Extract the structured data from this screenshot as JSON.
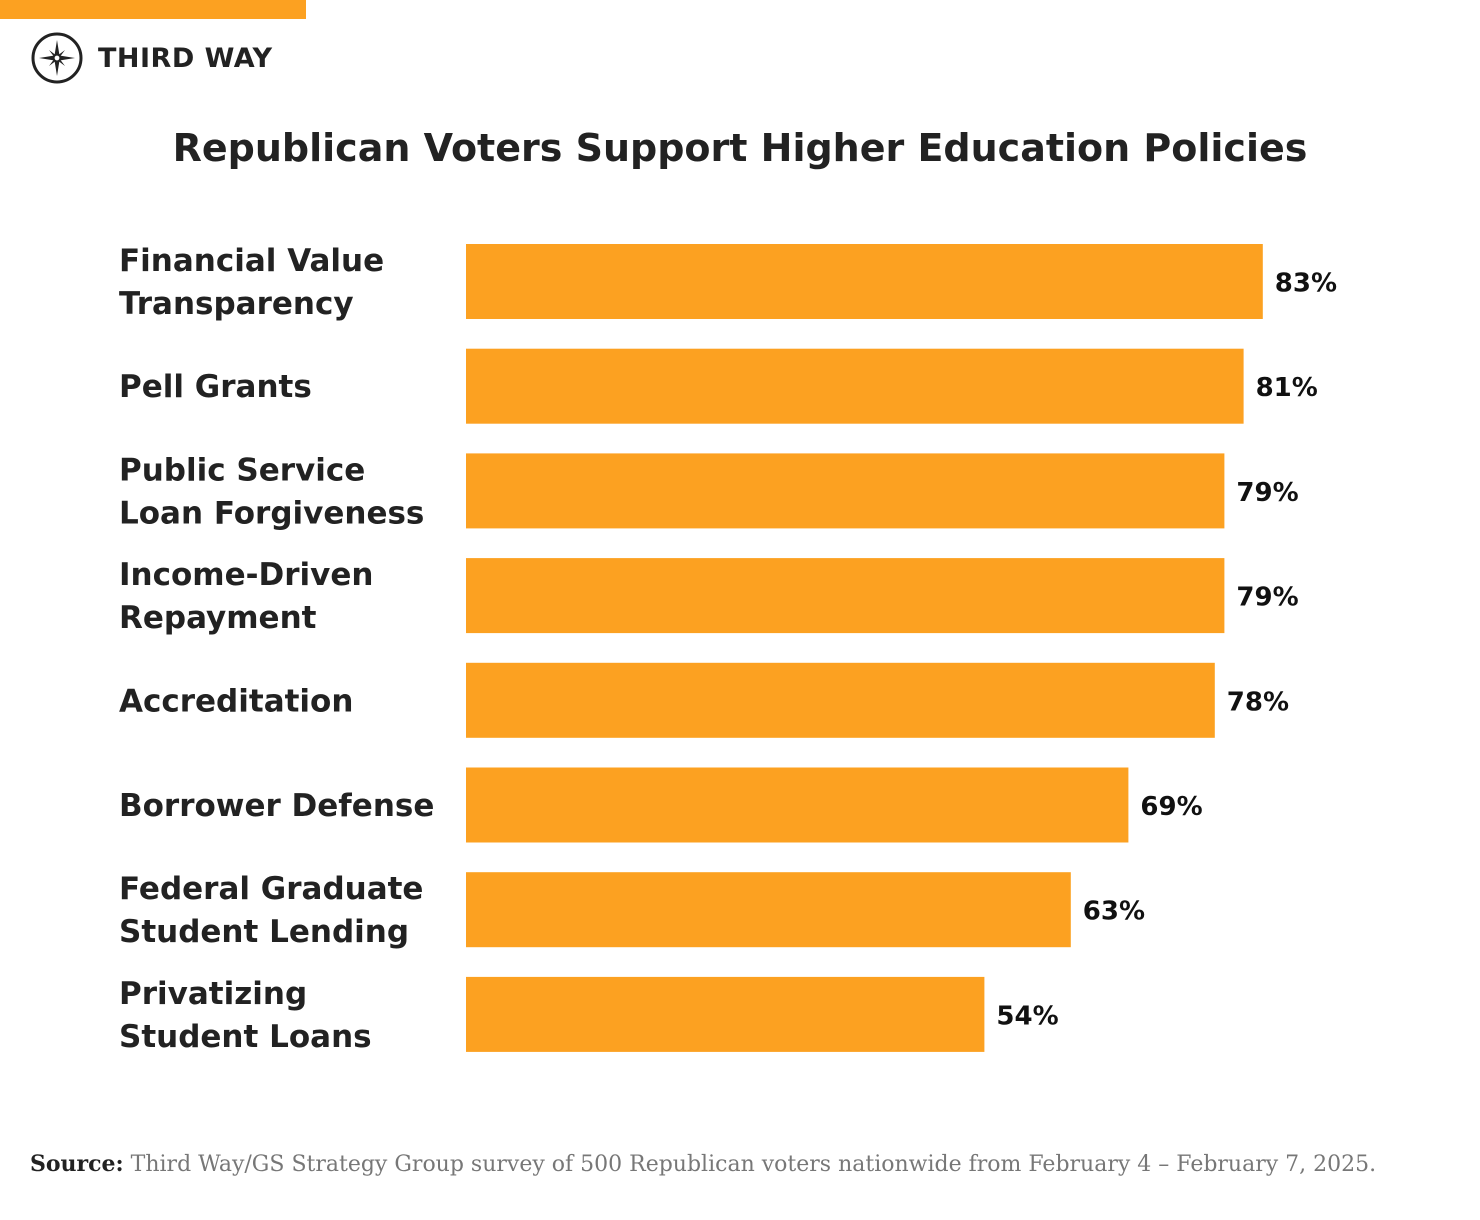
{
  "brand": {
    "name": "THIRD WAY",
    "accent": "#fca121"
  },
  "chart_data": {
    "type": "bar",
    "orientation": "horizontal",
    "title": "Republican Voters Support Higher Education Policies",
    "categories": [
      [
        "Financial Value",
        "Transparency"
      ],
      [
        "Pell Grants"
      ],
      [
        "Public Service",
        "Loan Forgiveness"
      ],
      [
        "Income-Driven",
        "Repayment"
      ],
      [
        "Accreditation"
      ],
      [
        "Borrower Defense"
      ],
      [
        "Federal Graduate",
        "Student Lending"
      ],
      [
        "Privatizing",
        "Student Loans"
      ]
    ],
    "values": [
      83,
      81,
      79,
      79,
      78,
      69,
      63,
      54
    ],
    "value_labels": [
      "83%",
      "81%",
      "79%",
      "79%",
      "78%",
      "69%",
      "63%",
      "54%"
    ],
    "xlim": [
      0,
      100
    ],
    "grid": false,
    "bar_color": "#fca121"
  },
  "source": {
    "label": "Source:",
    "text": "Third Way/GS Strategy Group survey of 500 Republican voters nationwide from February 4 – February 7, 2025."
  }
}
